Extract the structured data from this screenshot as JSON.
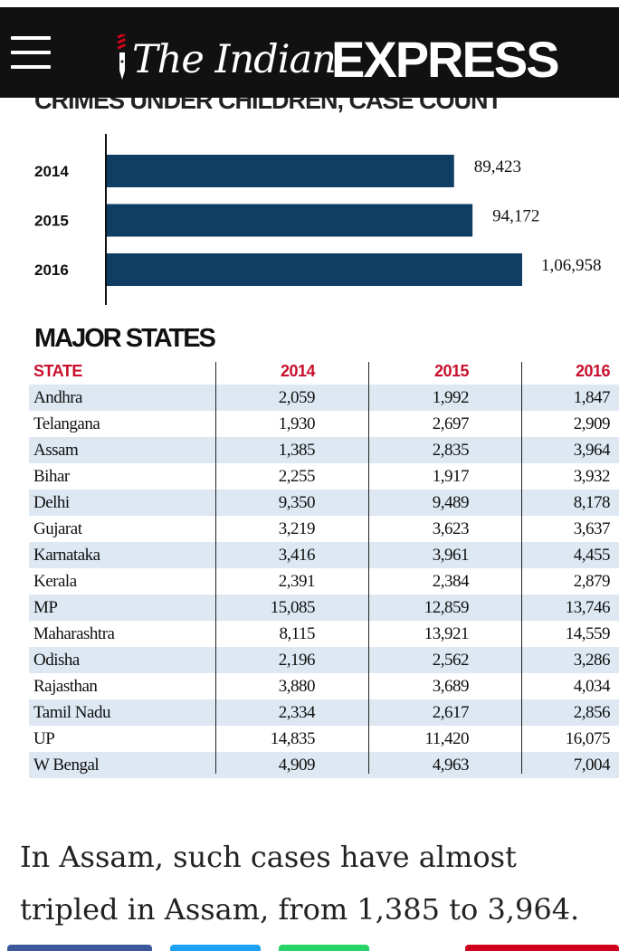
{
  "header": {
    "logo_serif": "The Indian",
    "logo_bold": "EXPRESS"
  },
  "chart_data": {
    "type": "bar",
    "orientation": "horizontal",
    "title": "CRIMES UNDER CHILDREN, CASE COUNT",
    "categories": [
      "2014",
      "2015",
      "2016"
    ],
    "values": [
      89423,
      94172,
      106958
    ],
    "value_labels": [
      "89,423",
      "94,172",
      "1,06,958"
    ],
    "xlim": [
      0,
      106958
    ],
    "color": "#0f3d63"
  },
  "states": {
    "title": "MAJOR STATES",
    "headers": [
      "STATE",
      "2014",
      "2015",
      "2016"
    ],
    "rows": [
      [
        "Andhra",
        "2,059",
        "1,992",
        "1,847"
      ],
      [
        "Telangana",
        "1,930",
        "2,697",
        "2,909"
      ],
      [
        "Assam",
        "1,385",
        "2,835",
        "3,964"
      ],
      [
        "Bihar",
        "2,255",
        "1,917",
        "3,932"
      ],
      [
        "Delhi",
        "9,350",
        "9,489",
        "8,178"
      ],
      [
        "Gujarat",
        "3,219",
        "3,623",
        "3,637"
      ],
      [
        "Karnataka",
        "3,416",
        "3,961",
        "4,455"
      ],
      [
        "Kerala",
        "2,391",
        "2,384",
        "2,879"
      ],
      [
        "MP",
        "15,085",
        "12,859",
        "13,746"
      ],
      [
        "Maharashtra",
        "8,115",
        "13,921",
        "14,559"
      ],
      [
        "Odisha",
        "2,196",
        "2,562",
        "3,286"
      ],
      [
        "Rajasthan",
        "3,880",
        "3,689",
        "4,034"
      ],
      [
        "Tamil Nadu",
        "2,334",
        "2,617",
        "2,856"
      ],
      [
        "UP",
        "14,835",
        "11,420",
        "16,075"
      ],
      [
        "W Bengal",
        "4,909",
        "4,963",
        "7,004"
      ]
    ]
  },
  "article": {
    "text": "In Assam, such cases have almost tripled in Assam, from 1,385 to 3,964."
  },
  "colors": {
    "header_bg": "#111111",
    "bar": "#0f3d63",
    "table_header": "#c8102e",
    "row_shade": "#dde8f2",
    "share_facebook": "#3b5998",
    "share_twitter": "#1da1f2",
    "share_whatsapp": "#25d366",
    "share_other": "#d0021b"
  }
}
